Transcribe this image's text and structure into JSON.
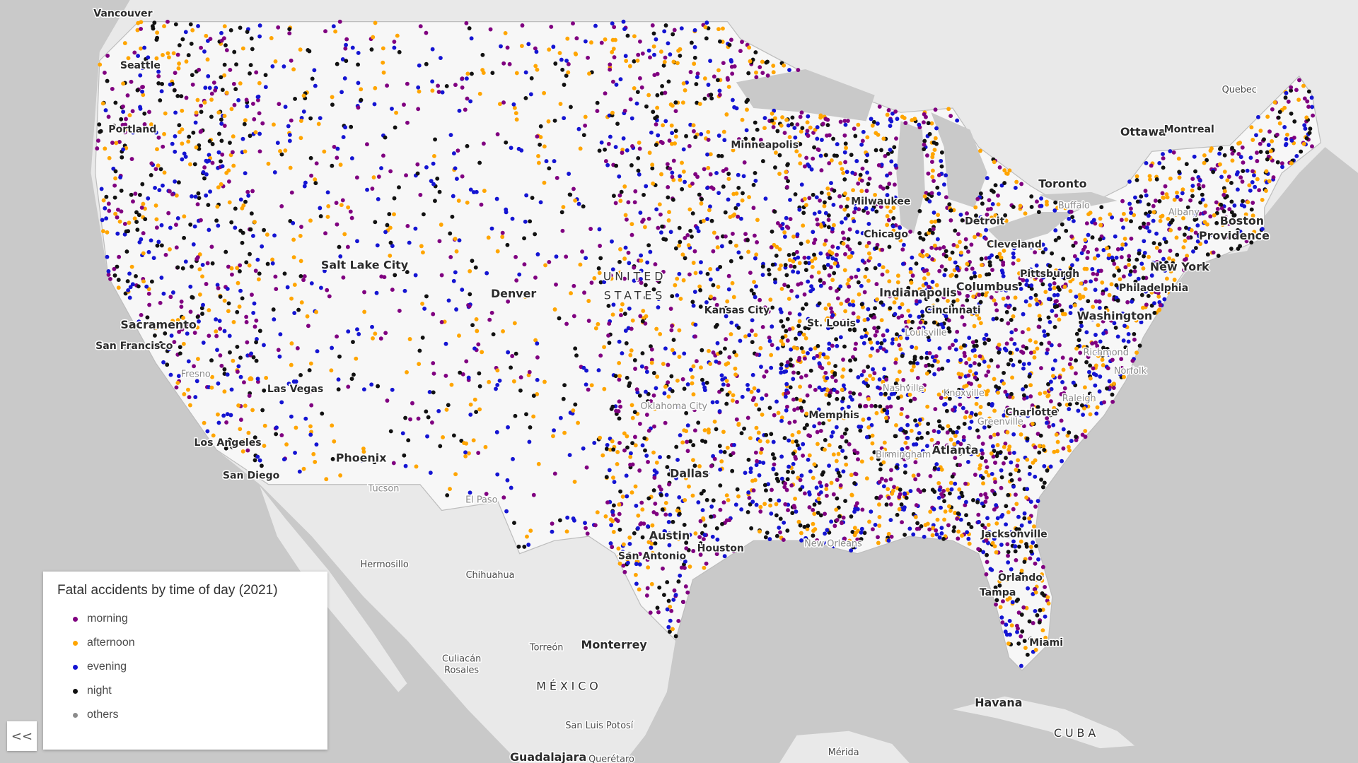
{
  "map": {
    "legend": {
      "title": "Fatal accidents by time of day (2021)",
      "items": [
        {
          "label": "morning",
          "color": "#800080"
        },
        {
          "label": "afternoon",
          "color": "#ffa500"
        },
        {
          "label": "evening",
          "color": "#1414d2"
        },
        {
          "label": "night",
          "color": "#111111"
        },
        {
          "label": "others",
          "color": "#8c8c8c"
        }
      ]
    },
    "collapse_button": "<<",
    "labels": [
      "Vancouver",
      "Seattle",
      "Portland",
      "Minneapolis",
      "Quebec",
      "Ottawa",
      "Montreal",
      "Toronto",
      "Buffalo",
      "Albany",
      "Boston",
      "Providence",
      "Milwaukee",
      "Detroit",
      "Chicago",
      "Cleveland",
      "Pittsburgh",
      "New York",
      "Salt Lake City",
      "UNITED",
      "STATES",
      "Denver",
      "Indianapolis",
      "Columbus",
      "Philadelphia",
      "Cincinnati",
      "Kansas City",
      "Washington",
      "St. Louis",
      "Sacramento",
      "Louisville",
      "San Francisco",
      "Richmond",
      "Norfolk",
      "Fresno",
      "Nashville",
      "Knoxville",
      "Las Vegas",
      "Raleigh",
      "Oklahoma City",
      "Charlotte",
      "Memphis",
      "Greenville",
      "Los Angeles",
      "Birmingham",
      "Atlanta",
      "Phoenix",
      "Dallas",
      "San Diego",
      "Tucson",
      "El Paso",
      "Jacksonville",
      "Austin",
      "New Orleans",
      "Houston",
      "San Antonio",
      "Hermosillo",
      "Chihuahua",
      "Orlando",
      "Tampa",
      "Miami",
      "Monterrey",
      "Torreón",
      "Culiacán",
      "Rosales",
      "MÉXICO",
      "Havana",
      "San Luis Potosí",
      "CUBA",
      "Mérida",
      "Guadalajara",
      "Querétaro"
    ]
  }
}
